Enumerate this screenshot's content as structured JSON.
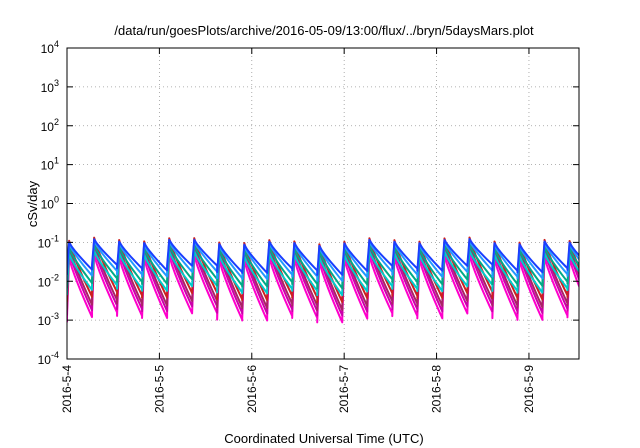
{
  "chart_data": {
    "type": "line",
    "title": "/data/run/goesPlots/archive/2016-05-09/13:00/flux/../bryn/5daysMars.plot",
    "xlabel": "Coordinated Universal Time (UTC)",
    "ylabel": "cSv/day",
    "y_scale": "log",
    "ylim": [
      0.0001,
      10000
    ],
    "y_ticks": [
      {
        "value": 0.0001,
        "base": "10",
        "exp": "-4"
      },
      {
        "value": 0.001,
        "base": "10",
        "exp": "-3"
      },
      {
        "value": 0.01,
        "base": "10",
        "exp": "-2"
      },
      {
        "value": 0.1,
        "base": "10",
        "exp": "-1"
      },
      {
        "value": 1,
        "base": "10",
        "exp": "0"
      },
      {
        "value": 10,
        "base": "10",
        "exp": "1"
      },
      {
        "value": 100,
        "base": "10",
        "exp": "2"
      },
      {
        "value": 1000,
        "base": "10",
        "exp": "3"
      },
      {
        "value": 10000,
        "base": "10",
        "exp": "4"
      }
    ],
    "xlim": [
      "2016-05-04 00:00",
      "2016-05-09 13:00"
    ],
    "x_ticks": [
      "2016-5-4",
      "2016-5-5",
      "2016-5-6",
      "2016-5-7",
      "2016-5-8",
      "2016-5-9"
    ],
    "grid": true,
    "period_hours": 6.5,
    "series": [
      {
        "color": "#ff00cc",
        "peak": 0.04,
        "trough": 0.0012
      },
      {
        "color": "#cc00aa",
        "peak": 0.06,
        "trough": 0.0018
      },
      {
        "color": "#aa2266",
        "peak": 0.08,
        "trough": 0.0025
      },
      {
        "color": "#cc2020",
        "peak": 0.11,
        "trough": 0.004
      },
      {
        "color": "#00cccc",
        "peak": 0.05,
        "trough": 0.006
      },
      {
        "color": "#00aa88",
        "peak": 0.07,
        "trough": 0.009
      },
      {
        "color": "#2299ff",
        "peak": 0.09,
        "trough": 0.014
      },
      {
        "color": "#1a3fff",
        "peak": 0.1,
        "trough": 0.02
      }
    ]
  }
}
